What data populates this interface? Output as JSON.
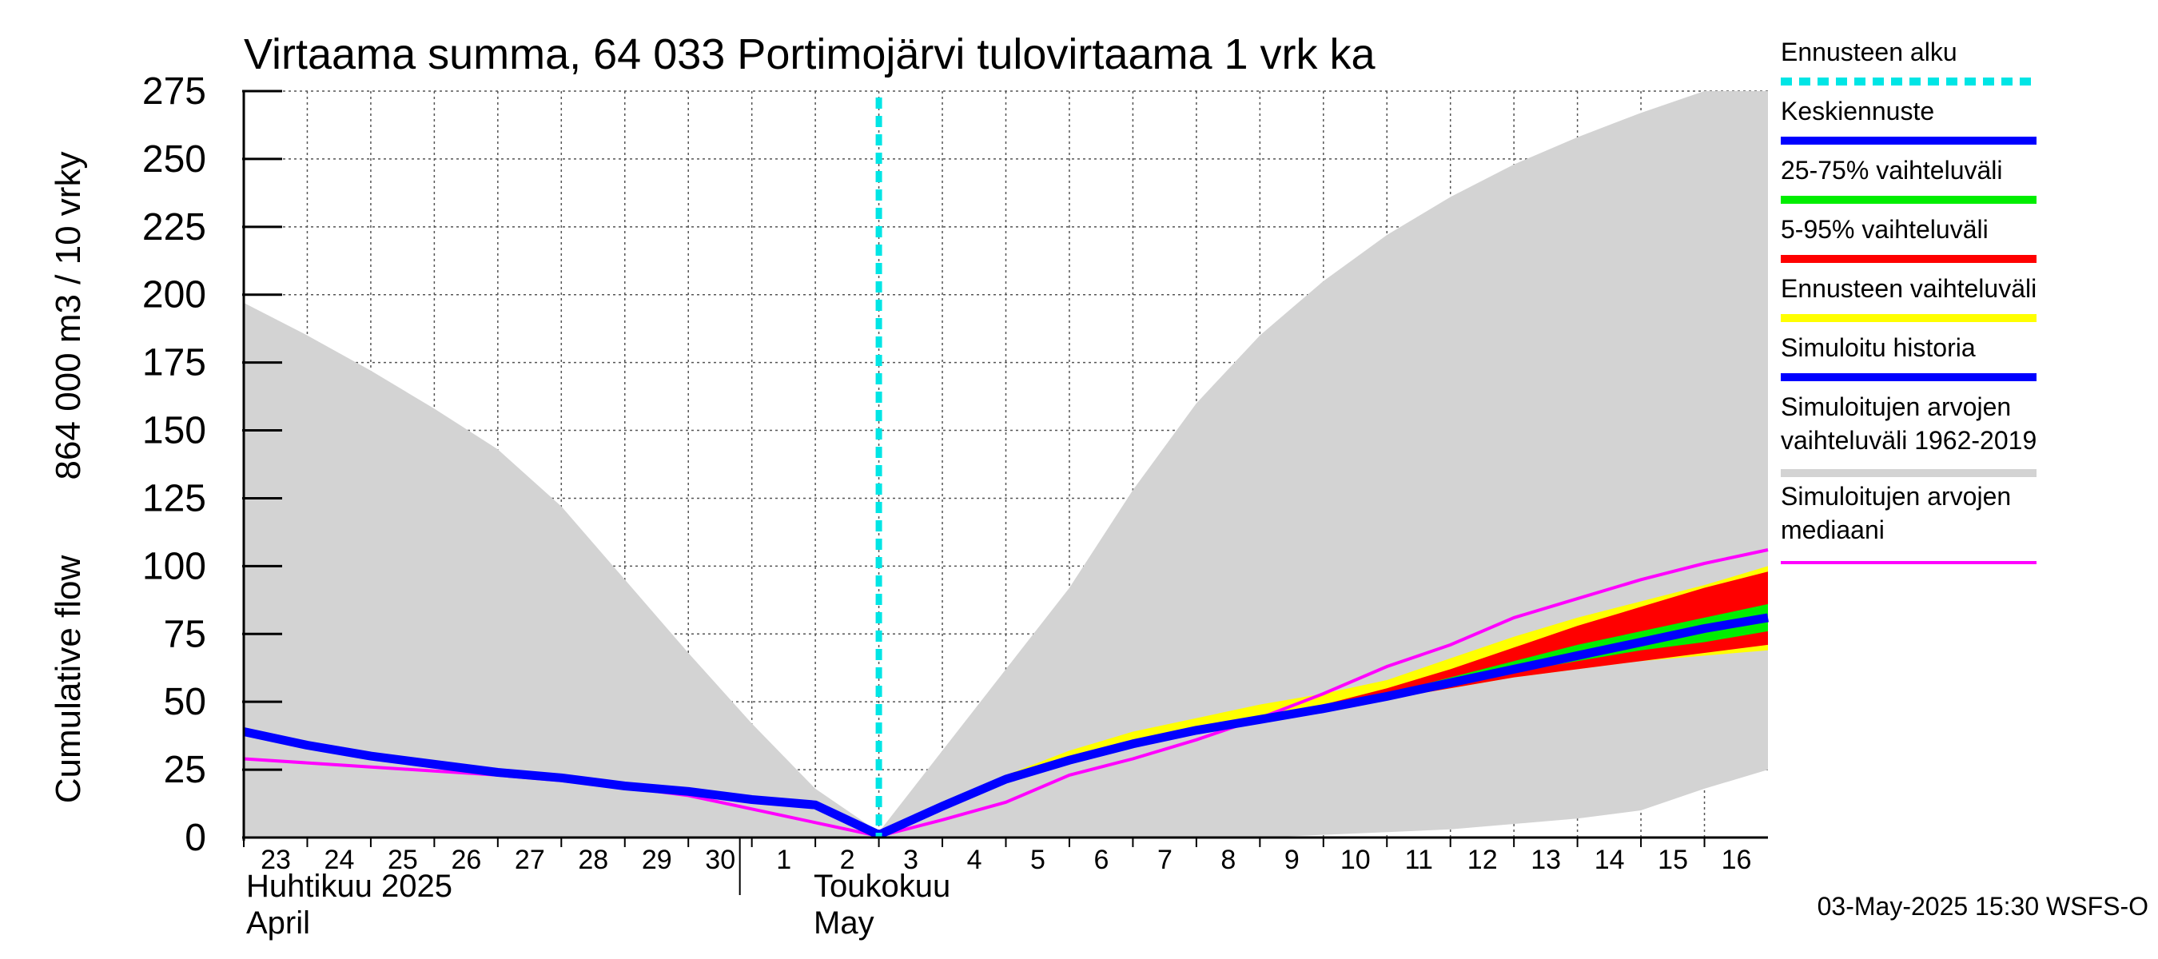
{
  "chart_data": {
    "type": "area",
    "title": "Virtaama summa, 64 033 Portimojärvi tulovirtaama 1 vrk ka",
    "ylabel_top": "864 000 m3 / 10 vrky",
    "ylabel_bottom": "Cumulative flow",
    "ylim": [
      0,
      275
    ],
    "yticks": [
      0,
      25,
      50,
      75,
      100,
      125,
      150,
      175,
      200,
      225,
      250,
      275
    ],
    "xlim": [
      0,
      24
    ],
    "x_tick_labels": [
      "23",
      "24",
      "25",
      "26",
      "27",
      "28",
      "29",
      "30",
      "1",
      "2",
      "3",
      "4",
      "5",
      "6",
      "7",
      "8",
      "9",
      "10",
      "11",
      "12",
      "13",
      "14",
      "15",
      "16"
    ],
    "month_labels": [
      {
        "line1": "Huhtikuu  2025",
        "line2": "April"
      },
      {
        "line1": "Toukokuu",
        "line2": "May"
      }
    ],
    "forecast_start_x": 10,
    "colors": {
      "forecast_start": "#00e5e5",
      "mean": "#0000ff",
      "p25_75": "#00ee00",
      "p5_95": "#ff0000",
      "forecast_range": "#ffff00",
      "sim_history": "#0000ff",
      "sim_range": "#d3d3d3",
      "sim_median": "#ff00ff"
    },
    "sim_range": {
      "x": [
        0,
        1,
        2,
        3,
        4,
        5,
        6,
        7,
        8,
        9,
        10,
        11,
        12,
        13,
        14,
        15,
        16,
        17,
        18,
        19,
        20,
        21,
        22,
        23,
        24
      ],
      "upper": [
        197,
        185,
        172,
        158,
        143,
        122,
        95,
        68,
        42,
        18,
        2,
        32,
        62,
        92,
        128,
        160,
        185,
        205,
        222,
        236,
        248,
        258,
        267,
        275,
        275
      ],
      "lower": [
        0,
        0,
        0,
        0,
        0,
        0,
        0,
        0,
        0,
        0,
        0,
        0,
        0,
        0,
        0,
        0,
        0,
        1,
        2,
        3,
        5,
        7,
        10,
        18,
        25
      ]
    },
    "sim_history": {
      "x": [
        0,
        1,
        2,
        3,
        4,
        5,
        6,
        7,
        8,
        9,
        10
      ],
      "y": [
        39,
        34,
        30,
        27,
        24,
        22,
        19,
        17,
        14,
        12,
        1
      ]
    },
    "sim_median": {
      "x": [
        0,
        1,
        2,
        3,
        4,
        5,
        6,
        7,
        8,
        9,
        10,
        11,
        12,
        13,
        14,
        15,
        16,
        17,
        18,
        19,
        20,
        21,
        22,
        23,
        24
      ],
      "y": [
        29,
        27.5,
        26,
        24.5,
        23,
        21,
        18.5,
        15.5,
        10.5,
        5.5,
        0.5,
        6.5,
        13,
        23,
        29,
        36,
        44,
        53,
        63,
        71,
        81,
        88,
        95,
        101,
        106
      ]
    },
    "forecast_x": [
      10,
      11,
      12,
      13,
      14,
      15,
      16,
      17,
      18,
      19,
      20,
      21,
      22,
      23,
      24
    ],
    "forecast_max": [
      1,
      12,
      23,
      32,
      39,
      44,
      49,
      53,
      58,
      66,
      74,
      81,
      87,
      93,
      100
    ],
    "forecast_min": [
      1,
      11,
      21,
      27,
      33,
      38,
      43,
      47,
      51,
      55,
      59,
      62,
      65,
      67,
      69
    ],
    "p95": [
      1,
      12,
      22,
      30,
      36,
      41,
      45,
      49,
      55,
      62,
      70,
      78,
      85,
      92,
      98
    ],
    "p5": [
      1,
      11,
      21,
      28,
      34,
      39,
      43,
      47,
      51,
      55,
      59,
      62,
      65,
      68,
      71
    ],
    "p75": [
      1,
      12,
      22,
      29,
      35,
      40,
      44,
      48,
      53,
      59,
      65,
      71,
      76,
      81,
      86
    ],
    "p25": [
      1,
      11,
      21,
      28,
      34,
      39,
      43,
      47,
      51,
      56,
      61,
      65,
      69,
      72,
      76
    ],
    "mean": [
      1,
      11.5,
      21.5,
      28.5,
      34.5,
      39.5,
      43.5,
      47.5,
      52,
      57,
      62,
      67,
      72,
      77,
      81
    ],
    "legend": [
      {
        "line1": "Ennusteen alku",
        "line2": "",
        "key": "forecast_start",
        "style": "dashed"
      },
      {
        "line1": "Keskiennuste",
        "line2": "",
        "key": "mean",
        "style": "solid"
      },
      {
        "line1": "25-75% vaihteluväli",
        "line2": "",
        "key": "p25_75",
        "style": "solid"
      },
      {
        "line1": "5-95% vaihteluväli",
        "line2": "",
        "key": "p5_95",
        "style": "solid"
      },
      {
        "line1": "Ennusteen vaihteluväli",
        "line2": "",
        "key": "forecast_range",
        "style": "solid"
      },
      {
        "line1": "Simuloitu historia",
        "line2": "",
        "key": "sim_history",
        "style": "solid"
      },
      {
        "line1": "Simuloitujen arvojen",
        "line2": "vaihteluväli 1962-2019",
        "key": "sim_range",
        "style": "solid"
      },
      {
        "line1": "Simuloitujen arvojen",
        "line2": "mediaani",
        "key": "sim_median",
        "style": "thin"
      }
    ],
    "footer": "03-May-2025 15:30 WSFS-O"
  }
}
